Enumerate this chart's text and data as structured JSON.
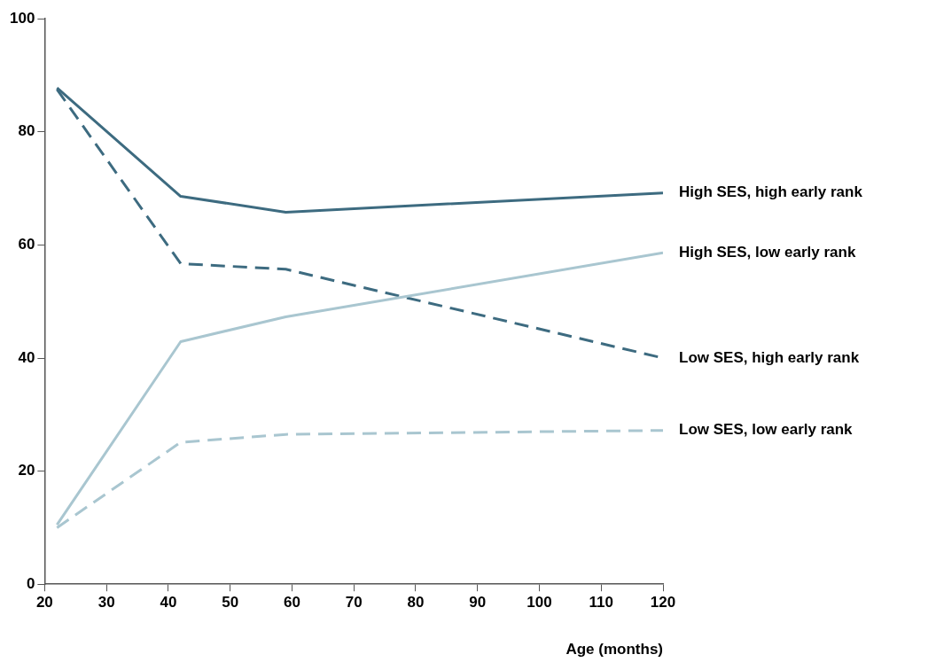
{
  "chart_data": {
    "type": "line",
    "xlabel": "Age (months)",
    "xlim": [
      20,
      120
    ],
    "xticks": [
      20,
      30,
      40,
      50,
      60,
      70,
      80,
      90,
      100,
      110,
      120
    ],
    "ylim": [
      0,
      100
    ],
    "yticks": [
      0,
      20,
      40,
      60,
      80,
      100
    ],
    "grid": false,
    "legend": false,
    "marker": "none",
    "series": [
      {
        "name": "High SES, high early rank",
        "color": "#3d6b80",
        "line_style": "solid",
        "x": [
          22,
          42,
          59,
          120
        ],
        "values": [
          87.8,
          68.6,
          65.8,
          69.2
        ]
      },
      {
        "name": "High SES, low early rank",
        "color": "#a9c6d0",
        "line_style": "solid",
        "x": [
          22,
          42,
          59,
          120
        ],
        "values": [
          10.5,
          42.9,
          47.3,
          58.6
        ]
      },
      {
        "name": "Low SES, high early rank",
        "color": "#3d6b80",
        "line_style": "dashed",
        "x": [
          22,
          42,
          59,
          120
        ],
        "values": [
          87.5,
          56.7,
          55.7,
          40.0
        ]
      },
      {
        "name": "Low SES, low early rank",
        "color": "#a9c6d0",
        "line_style": "dashed",
        "x": [
          22,
          42,
          59,
          120
        ],
        "values": [
          10,
          25.1,
          26.5,
          27.2
        ]
      }
    ]
  }
}
